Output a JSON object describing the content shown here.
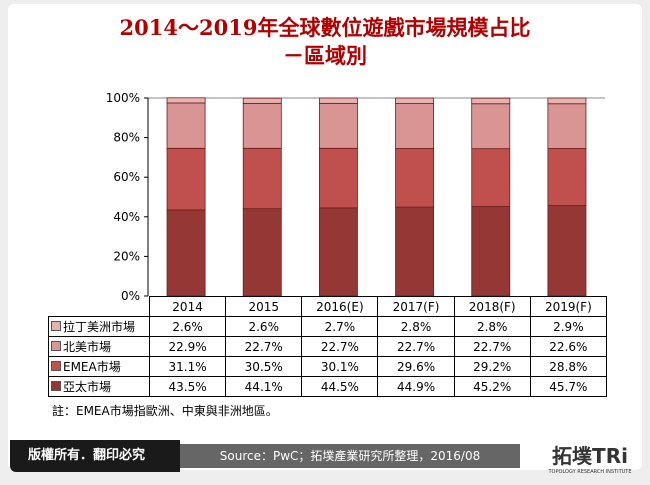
{
  "title_line1": "2014～2019年全球數位遊戲市場規模占比",
  "title_line2": "－區域別",
  "chart_data": {
    "type": "bar",
    "stacked": true,
    "categories": [
      "2014",
      "2015",
      "2016(E)",
      "2017(F)",
      "2018(F)",
      "2019(F)"
    ],
    "ylim": [
      0,
      100
    ],
    "yticks": [
      "0%",
      "20%",
      "40%",
      "60%",
      "80%",
      "100%"
    ],
    "series": [
      {
        "name": "拉丁美洲市場",
        "values": [
          2.6,
          2.6,
          2.7,
          2.8,
          2.8,
          2.9
        ],
        "labels": [
          "2.6%",
          "2.6%",
          "2.7%",
          "2.8%",
          "2.8%",
          "2.9%"
        ],
        "color": "#e6b2b1"
      },
      {
        "name": "北美市場",
        "values": [
          22.9,
          22.7,
          22.7,
          22.7,
          22.7,
          22.6
        ],
        "labels": [
          "22.9%",
          "22.7%",
          "22.7%",
          "22.7%",
          "22.7%",
          "22.6%"
        ],
        "color": "#d99594"
      },
      {
        "name": "EMEA市場",
        "values": [
          31.1,
          30.5,
          30.1,
          29.6,
          29.2,
          28.8
        ],
        "labels": [
          "31.1%",
          "30.5%",
          "30.1%",
          "29.6%",
          "29.2%",
          "28.8%"
        ],
        "color": "#c0504d"
      },
      {
        "name": "亞太市場",
        "values": [
          43.5,
          44.1,
          44.5,
          44.9,
          45.2,
          45.7
        ],
        "labels": [
          "43.5%",
          "44.1%",
          "44.5%",
          "44.9%",
          "45.2%",
          "45.7%"
        ],
        "color": "#953735"
      }
    ]
  },
  "note": "註：EMEA市場指歐洲、中東與非洲地區。",
  "footer": {
    "copyright": "版權所有．翻印必究",
    "source": "Source：PwC；拓墣產業研究所整理，2016/08",
    "logo_text": "拓墣TRi",
    "logo_sub": "TOPOLOGY RESEARCH INSTITUTE"
  }
}
